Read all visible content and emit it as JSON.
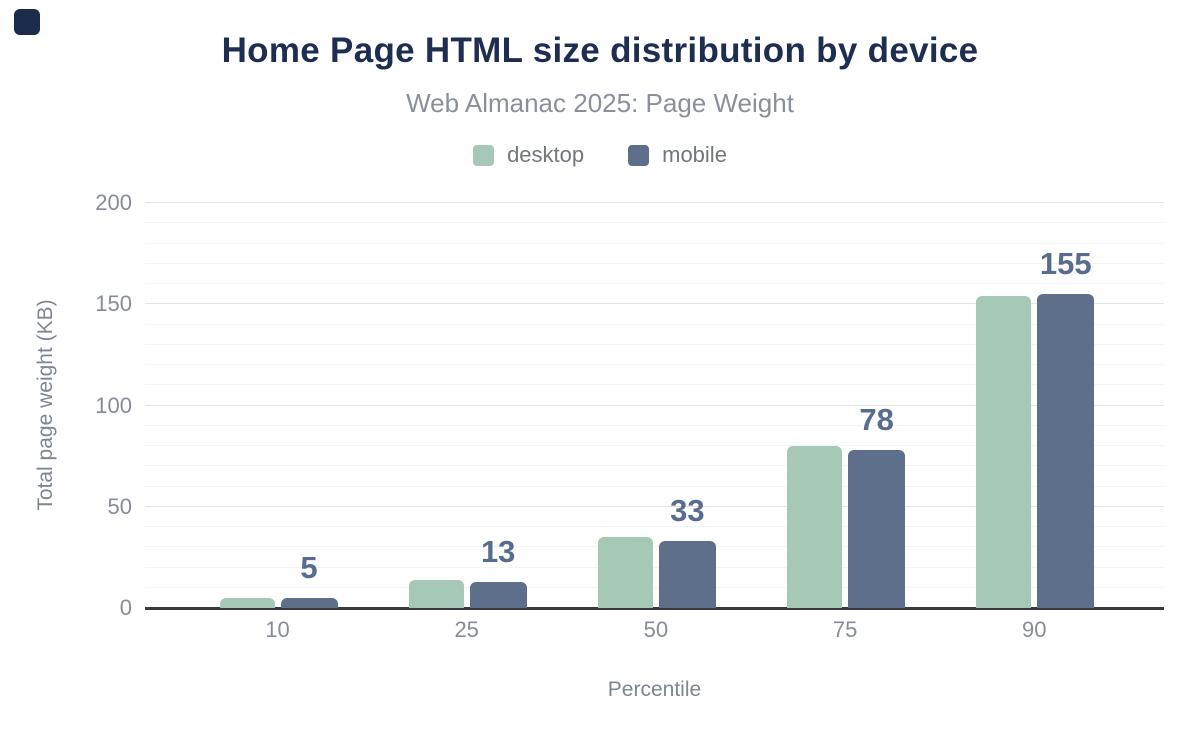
{
  "page": {
    "title": "Home Page HTML size distribution by device",
    "subtitle": "Web Almanac 2025: Page Weight"
  },
  "legend": [
    {
      "label": "desktop",
      "color": "#a5c8b7"
    },
    {
      "label": "mobile",
      "color": "#5e6f8c"
    }
  ],
  "axes": {
    "xlabel": "Percentile",
    "ylabel": "Total page weight (KB)"
  },
  "chart_data": {
    "type": "bar",
    "title": "Home Page HTML size distribution by device",
    "subtitle": "Web Almanac 2025: Page Weight",
    "xlabel": "Percentile",
    "ylabel": "Total page weight (KB)",
    "categories": [
      "10",
      "25",
      "50",
      "75",
      "90"
    ],
    "series": [
      {
        "name": "desktop",
        "color": "#a5c8b7",
        "values": [
          5,
          14,
          35,
          80,
          154
        ]
      },
      {
        "name": "mobile",
        "color": "#5e6f8c",
        "values": [
          5,
          13,
          33,
          78,
          155
        ]
      }
    ],
    "value_labels": [
      "5",
      "13",
      "33",
      "78",
      "155"
    ],
    "value_label_color": "#586c90",
    "ylim": [
      0,
      200
    ],
    "yticks": [
      0,
      50,
      100,
      150,
      200
    ],
    "grid": {
      "major_every": 50,
      "minor_every": 10,
      "major_color": "#e3e4e8",
      "minor_color": "#f4f4f6"
    },
    "legend_position": "top",
    "axis_line_color": "#37393f"
  },
  "colors": {
    "title": "#1d2e51",
    "subtitle": "#8a909b",
    "tick_text": "#878d96",
    "axis_title_text": "#7f8690",
    "logo": "#1b2b4c",
    "background": "#ffffff"
  }
}
